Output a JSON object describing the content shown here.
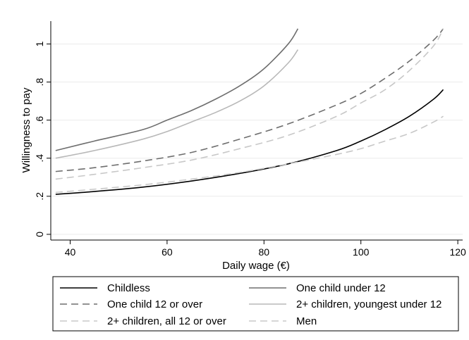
{
  "chart_data": {
    "type": "line",
    "xlabel": "Daily wage (€)",
    "ylabel": "Willingness to pay",
    "xlim": [
      36,
      121
    ],
    "ylim": [
      -0.03,
      1.12
    ],
    "xticks": [
      40,
      60,
      80,
      100,
      120
    ],
    "xtick_labels": [
      "40",
      "60",
      "80",
      "100",
      "120"
    ],
    "yticks": [
      0,
      0.2,
      0.4,
      0.6,
      0.8,
      1
    ],
    "ytick_labels": [
      "0",
      ".2",
      ".4",
      ".6",
      ".8",
      "1"
    ],
    "grid": "horizontal",
    "legend_position": "bottom",
    "series": [
      {
        "name": "Childless",
        "color": "#000000",
        "dash": "solid",
        "points": [
          [
            37,
            0.21
          ],
          [
            45,
            0.225
          ],
          [
            55,
            0.248
          ],
          [
            65,
            0.28
          ],
          [
            75,
            0.32
          ],
          [
            85,
            0.37
          ],
          [
            95,
            0.44
          ],
          [
            100,
            0.49
          ],
          [
            105,
            0.55
          ],
          [
            110,
            0.62
          ],
          [
            115,
            0.71
          ],
          [
            117,
            0.76
          ]
        ]
      },
      {
        "name": "One child under 12",
        "color": "#6e6e6e",
        "dash": "solid",
        "points": [
          [
            37,
            0.44
          ],
          [
            45,
            0.49
          ],
          [
            55,
            0.55
          ],
          [
            60,
            0.6
          ],
          [
            65,
            0.65
          ],
          [
            70,
            0.71
          ],
          [
            75,
            0.78
          ],
          [
            80,
            0.87
          ],
          [
            85,
            1.0
          ],
          [
            87,
            1.08
          ]
        ]
      },
      {
        "name": "One child 12 or over",
        "color": "#6e6e6e",
        "dash": "dashed",
        "points": [
          [
            37,
            0.33
          ],
          [
            45,
            0.35
          ],
          [
            55,
            0.385
          ],
          [
            65,
            0.43
          ],
          [
            75,
            0.5
          ],
          [
            85,
            0.58
          ],
          [
            95,
            0.68
          ],
          [
            100,
            0.74
          ],
          [
            105,
            0.82
          ],
          [
            110,
            0.91
          ],
          [
            115,
            1.02
          ],
          [
            117,
            1.08
          ]
        ]
      },
      {
        "name": "2+ children, youngest under 12",
        "color": "#b8b8b8",
        "dash": "solid",
        "points": [
          [
            37,
            0.4
          ],
          [
            45,
            0.44
          ],
          [
            55,
            0.5
          ],
          [
            60,
            0.54
          ],
          [
            65,
            0.59
          ],
          [
            70,
            0.64
          ],
          [
            75,
            0.7
          ],
          [
            80,
            0.78
          ],
          [
            85,
            0.9
          ],
          [
            87,
            0.97
          ]
        ]
      },
      {
        "name": "2+ children, all 12 or over",
        "color": "#c8c8c8",
        "dash": "dashed",
        "points": [
          [
            37,
            0.29
          ],
          [
            45,
            0.315
          ],
          [
            55,
            0.35
          ],
          [
            65,
            0.39
          ],
          [
            75,
            0.45
          ],
          [
            85,
            0.52
          ],
          [
            95,
            0.62
          ],
          [
            100,
            0.69
          ],
          [
            105,
            0.76
          ],
          [
            110,
            0.86
          ],
          [
            115,
            0.99
          ],
          [
            117,
            1.08
          ]
        ]
      },
      {
        "name": "Men",
        "color": "#c8c8c8",
        "dash": "dashed",
        "points": [
          [
            37,
            0.22
          ],
          [
            45,
            0.237
          ],
          [
            55,
            0.26
          ],
          [
            65,
            0.29
          ],
          [
            75,
            0.325
          ],
          [
            85,
            0.37
          ],
          [
            95,
            0.42
          ],
          [
            100,
            0.45
          ],
          [
            105,
            0.49
          ],
          [
            110,
            0.53
          ],
          [
            115,
            0.59
          ],
          [
            117,
            0.62
          ]
        ]
      }
    ]
  }
}
